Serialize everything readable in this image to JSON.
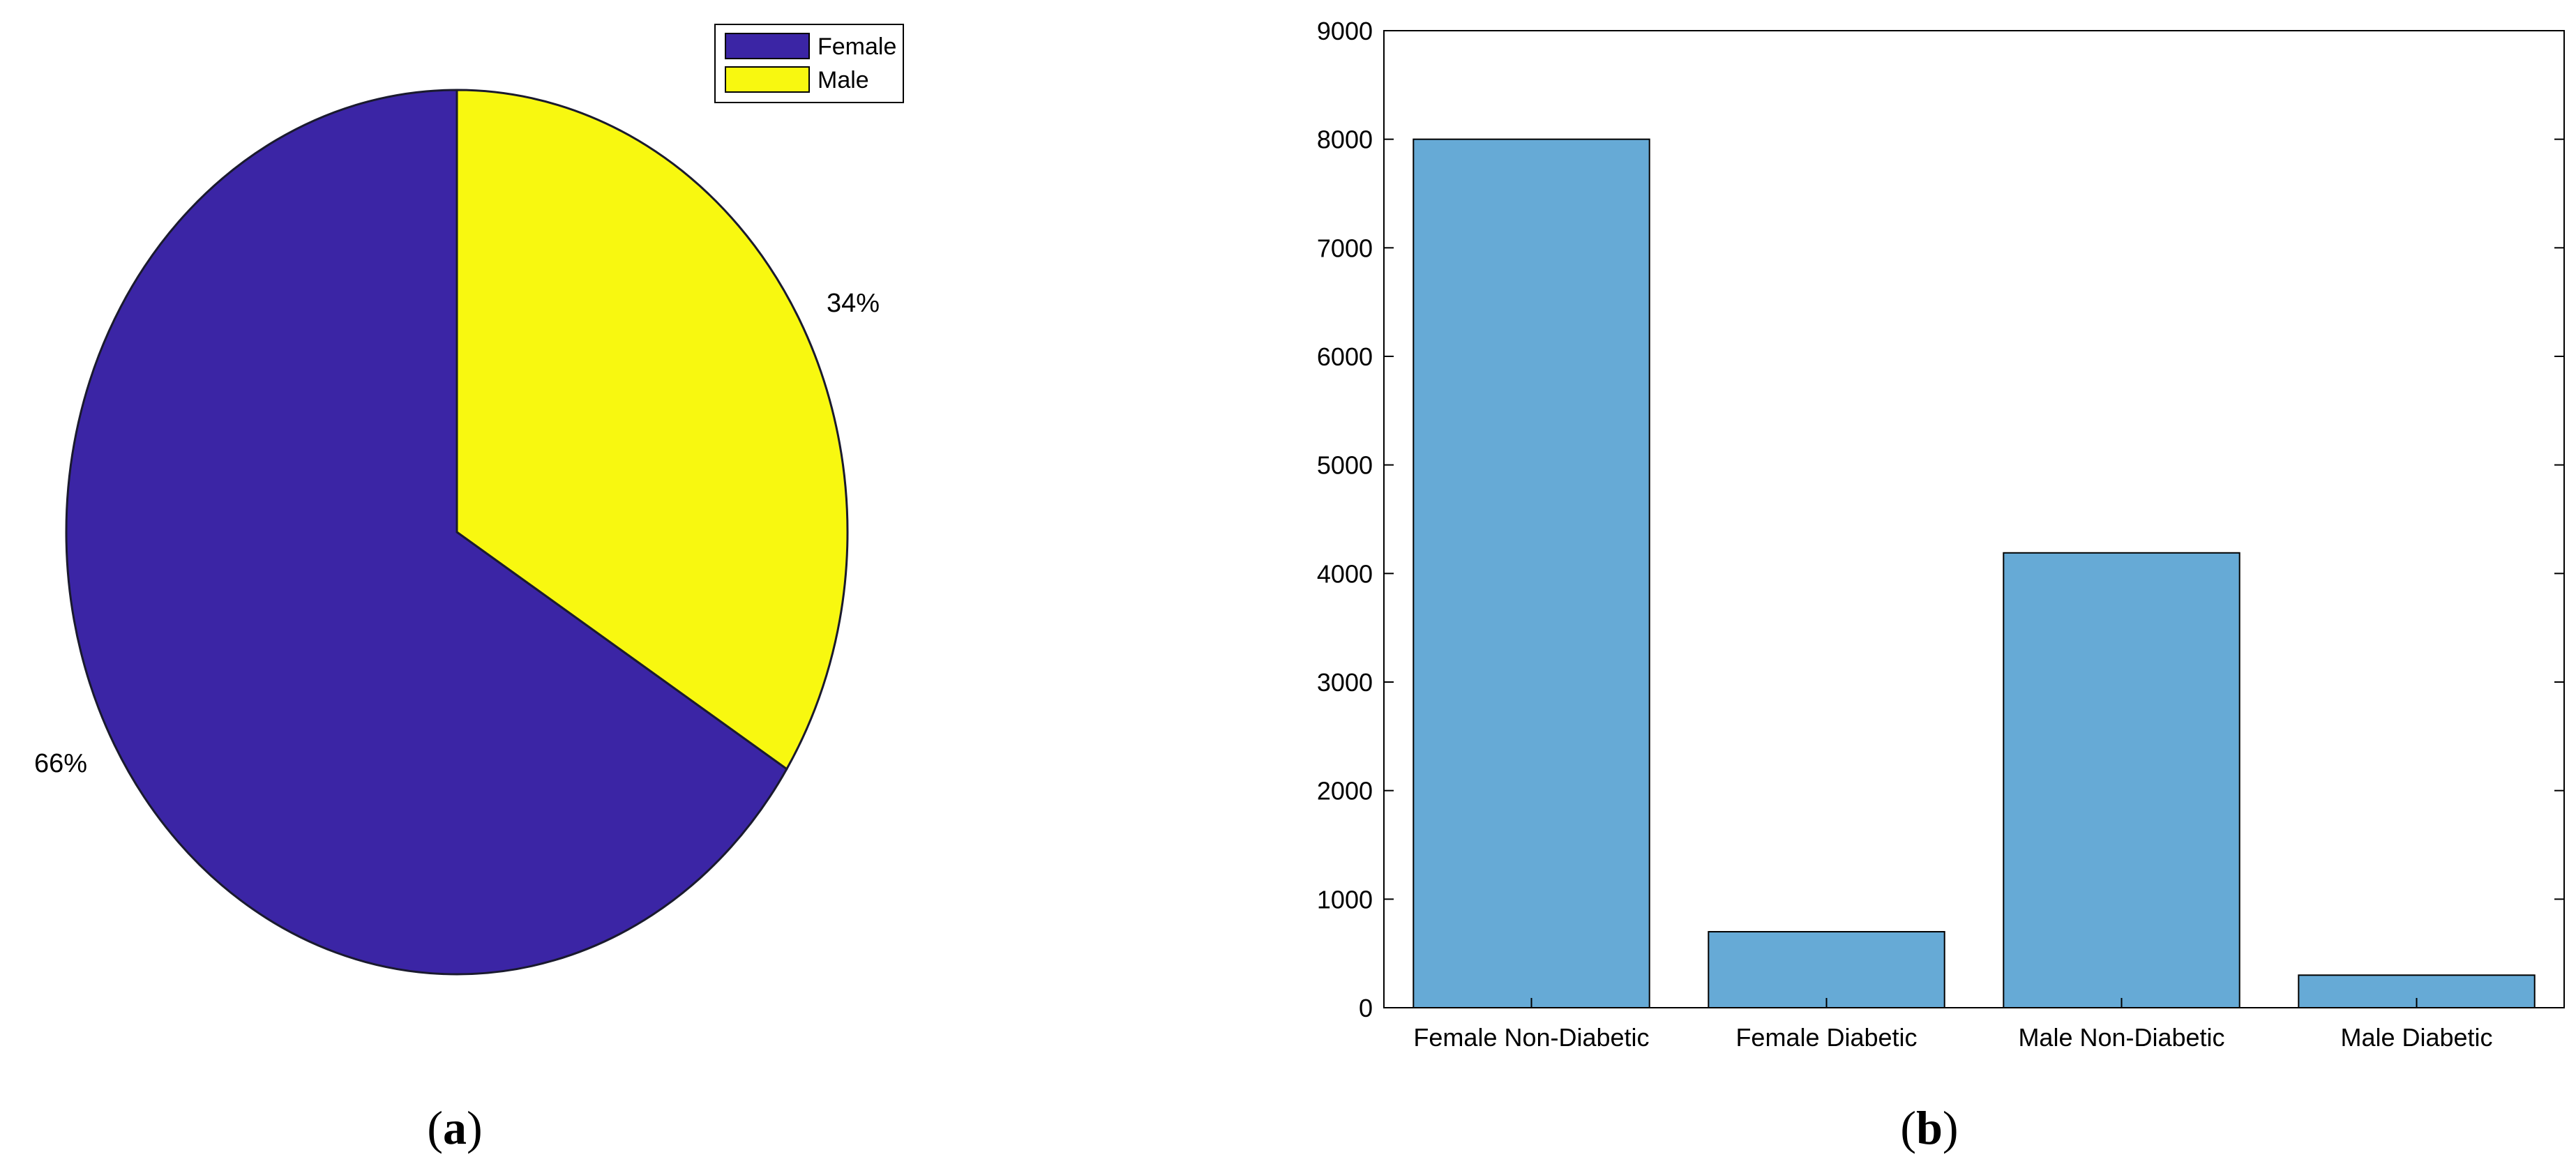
{
  "chart_data": [
    {
      "type": "pie",
      "categories": [
        "Female",
        "Male"
      ],
      "values": [
        66,
        34
      ],
      "labels": [
        "66%",
        "34%"
      ],
      "colors": [
        "#3b25a5",
        "#f8f810"
      ],
      "legend": [
        "Female",
        "Male"
      ],
      "legend_position": "top-right",
      "panel_label": "a"
    },
    {
      "type": "bar",
      "categories": [
        "Female Non-Diabetic",
        "Female Diabetic",
        "Male Non-Diabetic",
        "Male Diabetic"
      ],
      "values": [
        8000,
        700,
        4190,
        300
      ],
      "ylim": [
        0,
        9000
      ],
      "yticks": [
        0,
        1000,
        2000,
        3000,
        4000,
        5000,
        6000,
        7000,
        8000,
        9000
      ],
      "bar_color": "#66aad6",
      "grid": false,
      "panel_label": "b"
    }
  ]
}
